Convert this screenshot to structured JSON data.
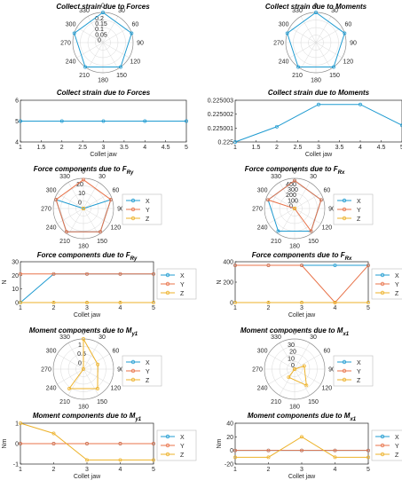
{
  "colors": {
    "X": "#1f9bd1",
    "Y": "#e8734a",
    "Z": "#edb22a",
    "axis": "#262626",
    "grid": "#d9d9d9"
  },
  "collet_xlabel": "Collet jaw",
  "collet_ticks": [
    "1",
    "1.5",
    "2",
    "2.5",
    "3",
    "3.5",
    "4",
    "4.5",
    "5"
  ],
  "collet_ticks_int": [
    "1",
    "2",
    "3",
    "4",
    "5"
  ],
  "polar_angle_labels": [
    "30",
    "0",
    "330",
    "60",
    "300",
    "90",
    "270",
    "120",
    "240",
    "150",
    "210",
    "180"
  ],
  "legend_labels": [
    "X",
    "Y",
    "Z"
  ],
  "chart_data": [
    {
      "id": "p1",
      "type": "polar",
      "title": "Collect strain due to Forces",
      "title_sub": "",
      "rticks": [
        "0.2",
        "0.15",
        "0.1",
        "0.05",
        "0"
      ],
      "rmax": 0.2,
      "series": [
        {
          "key": "X",
          "theta": [
            0,
            72,
            144,
            216,
            288
          ],
          "r": [
            0.2,
            0.2,
            0.2,
            0.2,
            0.2
          ]
        }
      ]
    },
    {
      "id": "p2",
      "type": "polar",
      "title": "Collect strain due to Moments",
      "title_sub": "",
      "rticks": [],
      "rmax": 0.2,
      "series": [
        {
          "key": "X",
          "theta": [
            0,
            72,
            144,
            216,
            288
          ],
          "r": [
            0.2,
            0.2,
            0.2,
            0.2,
            0.2
          ]
        }
      ]
    },
    {
      "id": "l1",
      "type": "line",
      "title": "Collect strain due to Forces",
      "title_sub": "",
      "ylabel": "",
      "ylim": [
        4,
        6
      ],
      "yticks": [
        "4",
        "5",
        "6"
      ],
      "legend": false,
      "series": [
        {
          "key": "X",
          "x": [
            1,
            2,
            3,
            4,
            5
          ],
          "y": [
            5,
            5,
            5,
            5,
            5
          ]
        }
      ]
    },
    {
      "id": "l2",
      "type": "line",
      "title": "Collect strain due to Moments",
      "title_sub": "",
      "ylabel": "",
      "ylim": [
        0.225,
        0.225003
      ],
      "yticks": [
        "0.225",
        "0.225001",
        "0.225002",
        "0.225003"
      ],
      "legend": false,
      "series": [
        {
          "key": "X",
          "x": [
            1,
            2,
            3,
            4,
            5
          ],
          "y": [
            0.225,
            0.2250011,
            0.2250027,
            0.2250027,
            0.2250012
          ]
        }
      ]
    },
    {
      "id": "p3",
      "type": "polar",
      "title": "Force components due to F",
      "title_sub": "Ry",
      "rticks": [
        "20",
        "10",
        "0"
      ],
      "rmax": 22,
      "legend": true,
      "series": [
        {
          "key": "X",
          "theta": [
            0,
            72,
            144,
            216,
            288
          ],
          "r": [
            0,
            21,
            21,
            21,
            21
          ]
        },
        {
          "key": "Y",
          "theta": [
            0,
            72,
            144,
            216,
            288
          ],
          "r": [
            21,
            21,
            21,
            21,
            21
          ]
        },
        {
          "key": "Z",
          "theta": [
            0,
            72,
            144,
            216,
            288
          ],
          "r": [
            0,
            0,
            0,
            0,
            0
          ]
        }
      ]
    },
    {
      "id": "p4",
      "type": "polar",
      "title": "Force components due to F",
      "title_sub": "Rx",
      "rticks": [
        "400",
        "300",
        "200",
        "100",
        "0"
      ],
      "rmax": 400,
      "legend": true,
      "series": [
        {
          "key": "X",
          "theta": [
            0,
            72,
            144,
            216,
            288
          ],
          "r": [
            370,
            370,
            370,
            370,
            370
          ]
        },
        {
          "key": "Y",
          "theta": [
            0,
            72,
            144,
            216,
            288
          ],
          "r": [
            370,
            370,
            370,
            0,
            370
          ]
        },
        {
          "key": "Z",
          "theta": [
            0,
            72,
            144,
            216,
            288
          ],
          "r": [
            0,
            0,
            0,
            0,
            0
          ]
        }
      ]
    },
    {
      "id": "l3",
      "type": "line",
      "title": "Force components due to F",
      "title_sub": "Ry",
      "ylabel": "N",
      "ylim": [
        0,
        30
      ],
      "yticks": [
        "0",
        "10",
        "20",
        "30"
      ],
      "legend": true,
      "series": [
        {
          "key": "X",
          "x": [
            1,
            2,
            3,
            4,
            5
          ],
          "y": [
            0,
            21,
            21,
            21,
            21
          ]
        },
        {
          "key": "Y",
          "x": [
            1,
            2,
            3,
            4,
            5
          ],
          "y": [
            21,
            21,
            21,
            21,
            21
          ]
        },
        {
          "key": "Z",
          "x": [
            1,
            2,
            3,
            4,
            5
          ],
          "y": [
            0,
            0,
            0,
            0,
            0
          ]
        }
      ]
    },
    {
      "id": "l4",
      "type": "line",
      "title": "Force components due to F",
      "title_sub": "Rx",
      "ylabel": "N",
      "ylim": [
        0,
        400
      ],
      "yticks": [
        "0",
        "200",
        "400"
      ],
      "legend": true,
      "series": [
        {
          "key": "X",
          "x": [
            1,
            2,
            3,
            4,
            5
          ],
          "y": [
            365,
            365,
            365,
            365,
            365
          ]
        },
        {
          "key": "Y",
          "x": [
            1,
            2,
            3,
            4,
            5
          ],
          "y": [
            365,
            365,
            365,
            0,
            365
          ]
        },
        {
          "key": "Z",
          "x": [
            1,
            2,
            3,
            4,
            5
          ],
          "y": [
            0,
            0,
            0,
            0,
            0
          ]
        }
      ]
    },
    {
      "id": "p5",
      "type": "polar",
      "title": "Moment components due to M",
      "title_sub": "y1",
      "rticks": [
        "1",
        "0.5",
        "0"
      ],
      "rmax": 1,
      "legend": true,
      "series": [
        {
          "key": "Z",
          "theta": [
            0,
            72,
            144,
            216,
            288
          ],
          "r": [
            1,
            0.5,
            0.8,
            0.8,
            0
          ]
        }
      ]
    },
    {
      "id": "p6",
      "type": "polar",
      "title": "Moment components due to M",
      "title_sub": "x1",
      "rticks": [
        "30",
        "20",
        "10",
        "0"
      ],
      "rmax": 30,
      "legend": true,
      "series": [
        {
          "key": "Z",
          "theta": [
            0,
            72,
            144,
            216,
            288
          ],
          "r": [
            0,
            10,
            20,
            10,
            0
          ]
        }
      ]
    },
    {
      "id": "l5",
      "type": "line",
      "title": "Moment components due to M",
      "title_sub": "y1",
      "ylabel": "Nm",
      "ylim": [
        -1,
        1
      ],
      "yticks": [
        "-1",
        "0",
        "1"
      ],
      "legend": true,
      "series": [
        {
          "key": "X",
          "x": [
            1,
            2,
            3,
            4,
            5
          ],
          "y": [
            0,
            0,
            0,
            0,
            0
          ]
        },
        {
          "key": "Y",
          "x": [
            1,
            2,
            3,
            4,
            5
          ],
          "y": [
            0,
            0,
            0,
            0,
            0
          ]
        },
        {
          "key": "Z",
          "x": [
            1,
            2,
            3,
            4,
            5
          ],
          "y": [
            1,
            0.5,
            -0.8,
            -0.8,
            -0.8
          ]
        }
      ]
    },
    {
      "id": "l6",
      "type": "line",
      "title": "Moment components due to M",
      "title_sub": "x1",
      "ylabel": "Nm",
      "ylim": [
        -20,
        40
      ],
      "yticks": [
        "-20",
        "0",
        "20",
        "40"
      ],
      "legend": true,
      "series": [
        {
          "key": "X",
          "x": [
            1,
            2,
            3,
            4,
            5
          ],
          "y": [
            0,
            0,
            0,
            0,
            0
          ]
        },
        {
          "key": "Y",
          "x": [
            1,
            2,
            3,
            4,
            5
          ],
          "y": [
            0,
            0,
            0,
            0,
            0
          ]
        },
        {
          "key": "Z",
          "x": [
            1,
            2,
            3,
            4,
            5
          ],
          "y": [
            -10,
            -10,
            20,
            -10,
            -10
          ]
        }
      ]
    }
  ]
}
